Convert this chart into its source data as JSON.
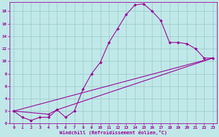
{
  "xlabel": "Windchill (Refroidissement éolien,°C)",
  "bg_color": "#c0e8e8",
  "grid_color": "#98c8c8",
  "line_color": "#990099",
  "xlim": [
    -0.5,
    23.5
  ],
  "ylim": [
    0,
    19.5
  ],
  "xticks": [
    0,
    1,
    2,
    3,
    4,
    5,
    6,
    7,
    8,
    9,
    10,
    11,
    12,
    13,
    14,
    15,
    16,
    17,
    18,
    19,
    20,
    21,
    22,
    23
  ],
  "yticks": [
    0,
    2,
    4,
    6,
    8,
    10,
    12,
    14,
    16,
    18
  ],
  "line1_x": [
    0,
    1,
    2,
    3,
    4,
    5,
    6,
    7,
    8,
    9,
    10,
    11,
    12,
    13,
    14,
    15,
    16,
    17,
    18,
    19,
    20,
    21,
    22,
    23
  ],
  "line1_y": [
    2,
    1,
    0.5,
    1,
    1,
    2.2,
    1,
    2,
    5.5,
    8,
    9.8,
    13,
    15.2,
    17.5,
    19,
    19.2,
    18,
    16.5,
    13,
    13,
    12.8,
    12,
    10.5,
    10.5
  ],
  "line2_x": [
    0,
    23
  ],
  "line2_y": [
    2,
    10.5
  ],
  "line3_x": [
    0,
    4,
    5,
    23
  ],
  "line3_y": [
    2,
    1.5,
    2.2,
    10.5
  ]
}
